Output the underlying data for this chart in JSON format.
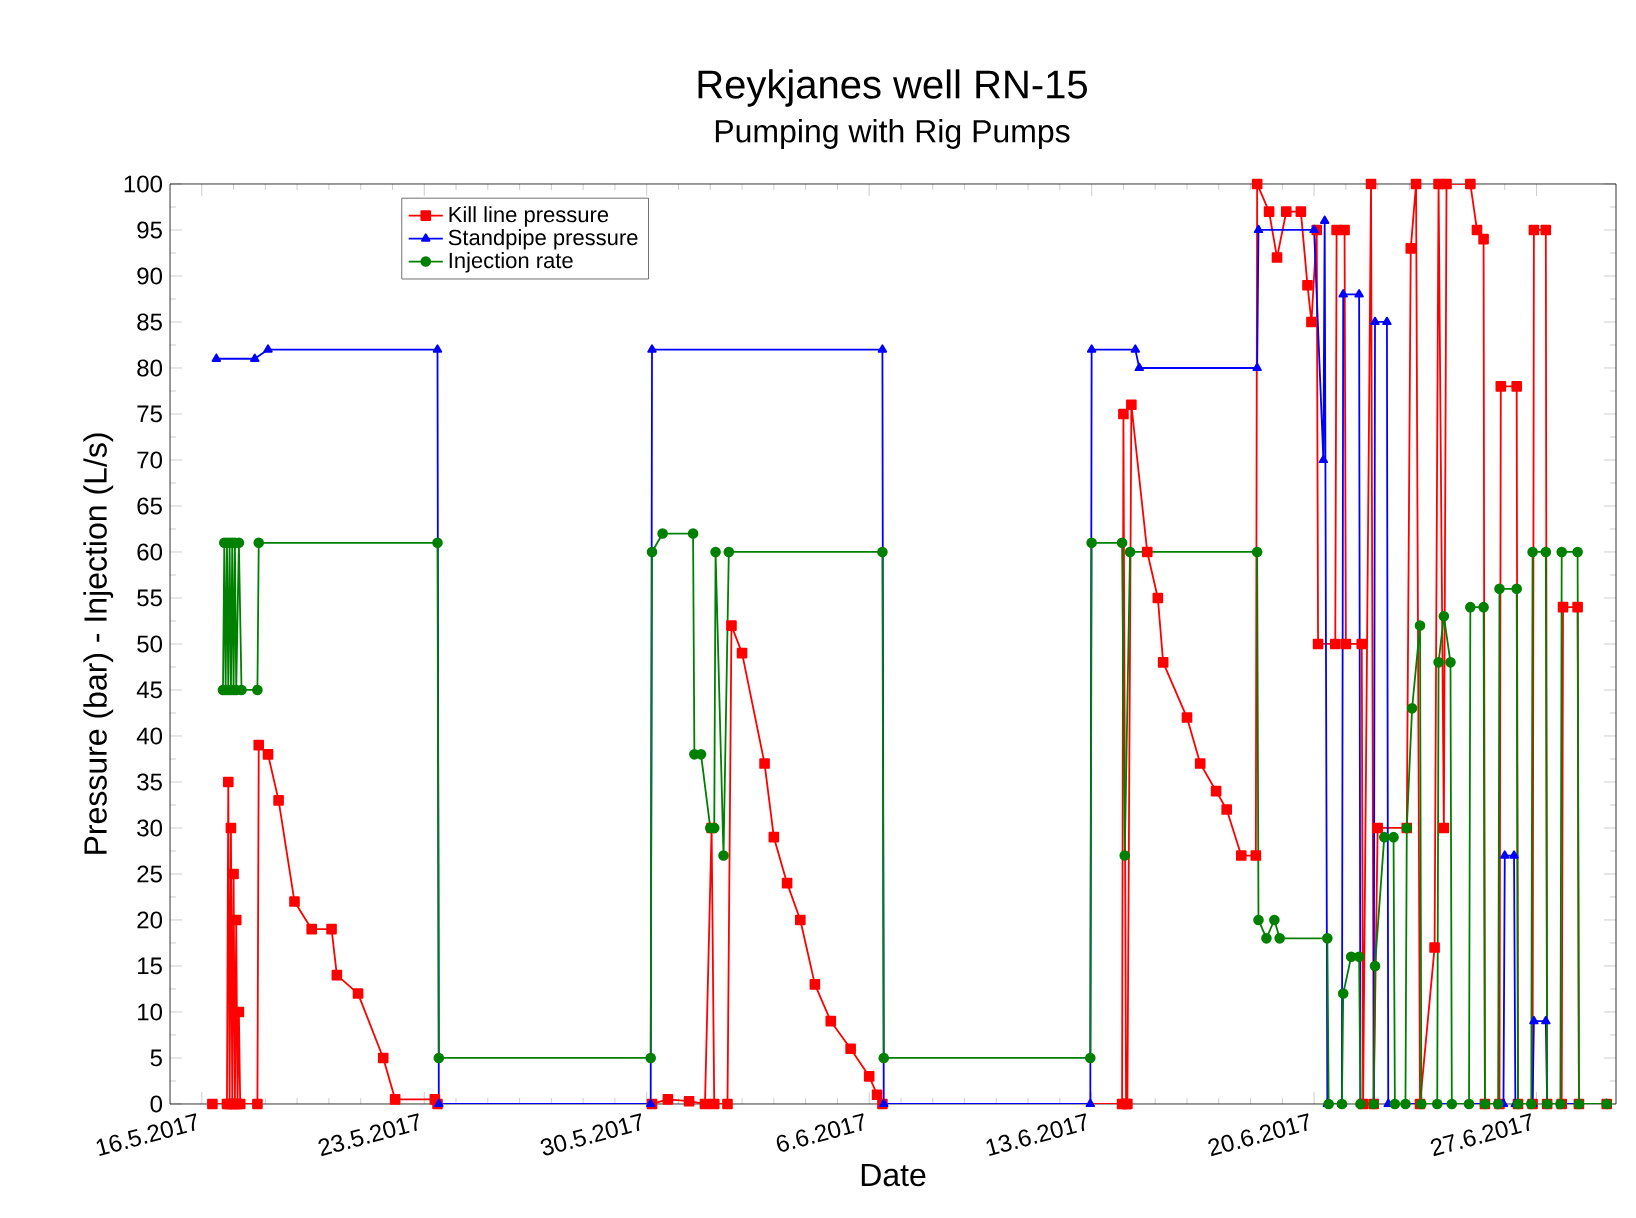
{
  "chart_data": {
    "type": "line",
    "title": "Reykjanes well RN-15",
    "subtitle": "Pumping with Rig Pumps",
    "xlabel": "Date",
    "ylabel": "Pressure (bar) - Injection (L/s)",
    "xlim": [
      "2017-05-15",
      "2017-06-29T12:00"
    ],
    "xticks": [
      {
        "value": "2017-05-16",
        "label": "16.5.2017"
      },
      {
        "value": "2017-05-23",
        "label": "23.5.2017"
      },
      {
        "value": "2017-05-30",
        "label": "30.5.2017"
      },
      {
        "value": "2017-06-06",
        "label": "6.6.2017"
      },
      {
        "value": "2017-06-13",
        "label": "13.6.2017"
      },
      {
        "value": "2017-06-20",
        "label": "20.6.2017"
      },
      {
        "value": "2017-06-27",
        "label": "27.6.2017"
      }
    ],
    "ylim": [
      0,
      100
    ],
    "yticks": [
      0,
      5,
      10,
      15,
      20,
      25,
      30,
      35,
      40,
      45,
      50,
      55,
      60,
      65,
      70,
      75,
      80,
      85,
      90,
      95,
      100
    ],
    "grid": false,
    "legend": "top left",
    "series": [
      {
        "name": "Kill line pressure",
        "color": "#ff0000",
        "marker": "square",
        "x": [
          "2017-05-16T08:00",
          "2017-05-16T19:00",
          "2017-05-16T20:00",
          "2017-05-16T21:00",
          "2017-05-16T22:00",
          "2017-05-16T23:00",
          "2017-05-17T00:00",
          "2017-05-17T01:00",
          "2017-05-17T02:00",
          "2017-05-17T03:00",
          "2017-05-17T04:00",
          "2017-05-17T05:00",
          "2017-05-17T18:00",
          "2017-05-17T19:00",
          "2017-05-18T02:00",
          "2017-05-18T10:00",
          "2017-05-18T22:00",
          "2017-05-19T11:00",
          "2017-05-20T02:00",
          "2017-05-20T06:00",
          "2017-05-20T22:00",
          "2017-05-21T17:00",
          "2017-05-22T02:00",
          "2017-05-23T08:00",
          "2017-05-23T10:00",
          "2017-05-30T04:00",
          "2017-05-30T16:00",
          "2017-05-31T08:00",
          "2017-05-31T20:00",
          "2017-06-01T01:00",
          "2017-06-01T03:00",
          "2017-06-01T13:00",
          "2017-06-01T16:00",
          "2017-06-02T00:00",
          "2017-06-02T17:00",
          "2017-06-03T00:00",
          "2017-06-03T10:00",
          "2017-06-03T20:00",
          "2017-06-04T07:00",
          "2017-06-04T19:00",
          "2017-06-05T10:00",
          "2017-06-06T00:00",
          "2017-06-06T06:00",
          "2017-06-06T10:00",
          "2017-06-13T23:00",
          "2017-06-14T00:00",
          "2017-06-14T02:00",
          "2017-06-14T03:00",
          "2017-06-14T06:00",
          "2017-06-14T18:00",
          "2017-06-15T02:00",
          "2017-06-15T06:00",
          "2017-06-16T00:00",
          "2017-06-16T10:00",
          "2017-06-16T22:00",
          "2017-06-17T06:00",
          "2017-06-17T17:00",
          "2017-06-18T04:00",
          "2017-06-18T05:00",
          "2017-06-18T14:00",
          "2017-06-18T20:00",
          "2017-06-19T03:00",
          "2017-06-19T14:00",
          "2017-06-19T19:00",
          "2017-06-19T22:00",
          "2017-06-20T02:00",
          "2017-06-20T03:00",
          "2017-06-20T16:00",
          "2017-06-20T17:00",
          "2017-06-20T23:00",
          "2017-06-21T00:00",
          "2017-06-21T12:00",
          "2017-06-21T13:00",
          "2017-06-21T19:00",
          "2017-06-21T21:00",
          "2017-06-22T00:00",
          "2017-06-22T22:00",
          "2017-06-23T01:00",
          "2017-06-23T05:00",
          "2017-06-23T08:00",
          "2017-06-23T19:00",
          "2017-06-23T22:00",
          "2017-06-24T02:00",
          "2017-06-24T04:00",
          "2017-06-24T22:00",
          "2017-06-25T03:00",
          "2017-06-25T08:00",
          "2017-06-25T09:00",
          "2017-06-25T20:00",
          "2017-06-25T21:00",
          "2017-06-26T09:00",
          "2017-06-26T10:00",
          "2017-06-26T21:00",
          "2017-06-26T22:00",
          "2017-06-27T07:00",
          "2017-06-27T08:00",
          "2017-06-27T19:00",
          "2017-06-27T20:00",
          "2017-06-28T07:00",
          "2017-06-28T08:00",
          "2017-06-29T05:00"
        ],
        "values": [
          0,
          0,
          35,
          0,
          30,
          0,
          25,
          0,
          20,
          0,
          10,
          0,
          0,
          39,
          38,
          33,
          22,
          19,
          19,
          14,
          12,
          5,
          0.5,
          0.5,
          0,
          0,
          0.5,
          0.3,
          0,
          30,
          0,
          0,
          52,
          49,
          37,
          29,
          24,
          20,
          13,
          9,
          6,
          3,
          1,
          0,
          0,
          75,
          0,
          0,
          76,
          60,
          55,
          48,
          42,
          37,
          34,
          32,
          27,
          27,
          100,
          97,
          92,
          97,
          97,
          89,
          85,
          95,
          50,
          50,
          95,
          95,
          50,
          50,
          0,
          100,
          0,
          30,
          30,
          93,
          100,
          0,
          17,
          100,
          30,
          100,
          100,
          95,
          94,
          0,
          0,
          78,
          78,
          0,
          0,
          95,
          95,
          0,
          0,
          54,
          54,
          0,
          0
        ]
      },
      {
        "name": "Standpipe pressure",
        "color": "#0000ff",
        "marker": "triangle",
        "x": [
          "2017-05-16T11:00",
          "2017-05-17T16:00",
          "2017-05-18T02:00",
          "2017-05-23T10:00",
          "2017-05-23T11:00",
          "2017-05-30T03:00",
          "2017-05-30T04:00",
          "2017-06-06T10:00",
          "2017-06-06T11:00",
          "2017-06-12T23:00",
          "2017-06-13T00:00",
          "2017-06-14T09:00",
          "2017-06-14T12:00",
          "2017-06-18T05:00",
          "2017-06-18T06:00",
          "2017-06-20T00:00",
          "2017-06-20T07:00",
          "2017-06-20T08:00",
          "2017-06-20T10:00",
          "2017-06-20T21:00",
          "2017-06-20T22:00",
          "2017-06-21T10:00",
          "2017-06-21T11:00",
          "2017-06-21T21:00",
          "2017-06-21T22:00",
          "2017-06-22T07:00",
          "2017-06-22T08:00",
          "2017-06-25T23:00",
          "2017-06-26T00:00",
          "2017-06-26T07:00",
          "2017-06-26T08:00",
          "2017-06-26T21:00",
          "2017-06-26T22:00",
          "2017-06-27T07:00",
          "2017-06-27T08:00",
          "2017-06-29T05:00"
        ],
        "values": [
          81,
          81,
          82,
          82,
          0,
          0,
          82,
          82,
          0,
          0,
          82,
          82,
          80,
          80,
          95,
          95,
          70,
          96,
          0,
          0,
          88,
          88,
          0,
          0,
          85,
          85,
          0,
          0,
          27,
          27,
          0,
          0,
          9,
          9,
          0,
          0
        ]
      },
      {
        "name": "Injection rate",
        "color": "#008000",
        "marker": "circle",
        "x": [
          "2017-05-16T16:00",
          "2017-05-16T17:00",
          "2017-05-16T18:00",
          "2017-05-16T19:00",
          "2017-05-16T20:00",
          "2017-05-16T21:00",
          "2017-05-16T22:00",
          "2017-05-16T23:00",
          "2017-05-17T00:00",
          "2017-05-17T01:00",
          "2017-05-17T02:00",
          "2017-05-17T04:00",
          "2017-05-17T06:00",
          "2017-05-17T18:00",
          "2017-05-17T19:00",
          "2017-05-23T10:00",
          "2017-05-23T11:00",
          "2017-05-30T03:00",
          "2017-05-30T04:00",
          "2017-05-30T12:00",
          "2017-05-31T11:00",
          "2017-05-31T12:00",
          "2017-05-31T17:00",
          "2017-06-01T00:00",
          "2017-06-01T03:00",
          "2017-06-01T04:00",
          "2017-06-01T10:00",
          "2017-06-01T14:00",
          "2017-06-06T10:00",
          "2017-06-06T11:00",
          "2017-06-12T23:00",
          "2017-06-13T00:00",
          "2017-06-13T23:00",
          "2017-06-14T01:00",
          "2017-06-14T05:00",
          "2017-06-18T05:00",
          "2017-06-18T06:00",
          "2017-06-18T12:00",
          "2017-06-18T18:00",
          "2017-06-18T22:00",
          "2017-06-20T10:00",
          "2017-06-20T11:00",
          "2017-06-20T21:00",
          "2017-06-20T22:00",
          "2017-06-21T04:00",
          "2017-06-21T10:00",
          "2017-06-21T11:00",
          "2017-06-21T21:00",
          "2017-06-21T22:00",
          "2017-06-22T05:00",
          "2017-06-22T12:00",
          "2017-06-22T13:00",
          "2017-06-22T21:00",
          "2017-06-22T22:00",
          "2017-06-23T02:00",
          "2017-06-23T08:00",
          "2017-06-23T09:00",
          "2017-06-23T21:00",
          "2017-06-23T22:00",
          "2017-06-24T02:00",
          "2017-06-24T07:00",
          "2017-06-24T08:00",
          "2017-06-24T21:00",
          "2017-06-24T22:00",
          "2017-06-25T08:00",
          "2017-06-25T09:00",
          "2017-06-25T19:00",
          "2017-06-25T20:00",
          "2017-06-26T09:00",
          "2017-06-26T10:00",
          "2017-06-26T20:00",
          "2017-06-26T21:00",
          "2017-06-27T07:00",
          "2017-06-27T08:00",
          "2017-06-27T18:00",
          "2017-06-27T19:00",
          "2017-06-28T07:00",
          "2017-06-28T08:00",
          "2017-06-29T05:00"
        ],
        "values": [
          45,
          61,
          45,
          61,
          45,
          61,
          45,
          61,
          45,
          61,
          45,
          61,
          45,
          45,
          61,
          61,
          5,
          5,
          60,
          62,
          62,
          38,
          38,
          30,
          30,
          60,
          27,
          60,
          60,
          5,
          5,
          61,
          61,
          27,
          60,
          60,
          20,
          18,
          20,
          18,
          18,
          0,
          0,
          12,
          16,
          16,
          0,
          0,
          15,
          29,
          29,
          0,
          0,
          30,
          43,
          52,
          0,
          0,
          48,
          53,
          48,
          0,
          0,
          54,
          54,
          0,
          0,
          56,
          56,
          0,
          0,
          60,
          60,
          0,
          0,
          60,
          60,
          0,
          0
        ]
      }
    ]
  }
}
